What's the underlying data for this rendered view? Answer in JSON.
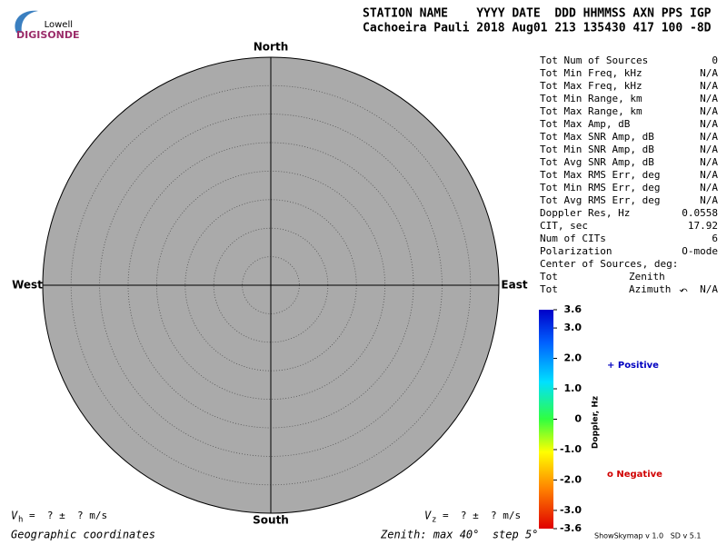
{
  "logo": {
    "top": "Lowell",
    "bottom": "DIGISONDE"
  },
  "header": {
    "columns": "STATION NAME    YYYY DATE  DDD HHMMSS AXN PPS IGP",
    "values": "Cachoeira Pauli 2018 Aug01 213 135430 417 100 -8D"
  },
  "directions": {
    "north": "North",
    "south": "South",
    "west": "West",
    "east": "East"
  },
  "stats": {
    "rows": [
      {
        "label": "Tot Num of Sources",
        "value": "0"
      },
      {
        "label": "Tot Min Freq, kHz",
        "value": "N/A"
      },
      {
        "label": "Tot Max Freq, kHz",
        "value": "N/A"
      },
      {
        "label": "Tot Min Range, km",
        "value": "N/A"
      },
      {
        "label": "Tot Max Range, km",
        "value": "N/A"
      },
      {
        "label": "Tot Max Amp, dB",
        "value": "N/A"
      },
      {
        "label": "Tot Max SNR Amp, dB",
        "value": "N/A"
      },
      {
        "label": "Tot Min SNR Amp, dB",
        "value": "N/A"
      },
      {
        "label": "Tot Avg SNR Amp, dB",
        "value": "N/A"
      },
      {
        "label": "Tot Max RMS Err, deg",
        "value": "N/A"
      },
      {
        "label": "Tot Min RMS Err, deg",
        "value": "N/A"
      },
      {
        "label": "Tot Avg RMS Err, deg",
        "value": "N/A"
      },
      {
        "label": "Doppler Res, Hz",
        "value": "0.0558"
      },
      {
        "label": "CIT, sec",
        "value": "17.92"
      },
      {
        "label": "Num of CITs",
        "value": "6"
      },
      {
        "label": "Polarization",
        "value": "O-mode"
      },
      {
        "label": "Center of Sources, deg:"
      },
      {
        "label": "Tot",
        "middle": "Zenith"
      },
      {
        "label": "Tot",
        "middle": "Azimuth",
        "value": "N/A"
      }
    ]
  },
  "colorbar": {
    "title": "Doppler, Hz",
    "ticks": [
      "3.6",
      "3.0",
      "2.0",
      "1.0",
      "0",
      "-1.0",
      "-2.0",
      "-3.0",
      "-3.6"
    ]
  },
  "legend": {
    "positive": "+ Positive",
    "negative": "o Negative"
  },
  "footer": {
    "vh": {
      "symbol": "V",
      "subscript": "h",
      "text": "=  ? ±  ? m/s"
    },
    "vz": {
      "symbol": "V",
      "subscript": "z",
      "text": "=  ? ±  ? m/s"
    },
    "coordinates": "Geographic coordinates",
    "zenith": "Zenith: max 40°  step 5°",
    "version": "ShowSkymap v 1.0   SD v 5.1"
  }
}
